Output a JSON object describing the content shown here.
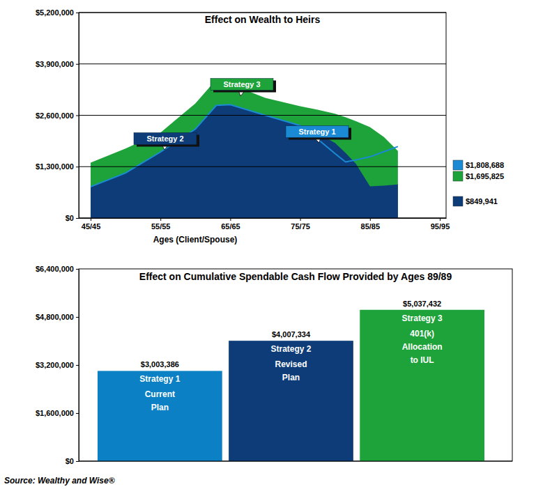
{
  "chart_data": [
    {
      "type": "area",
      "title": "Effect on Wealth to Heirs",
      "x_label": "Ages (Client/Spouse)",
      "x": [
        45,
        50,
        55,
        60,
        63,
        65,
        70,
        75,
        77.5,
        80,
        81.5,
        83,
        85,
        87,
        89
      ],
      "xlim": [
        43.3,
        95.9
      ],
      "xticks": [
        {
          "value": 45,
          "label": "45/45"
        },
        {
          "value": 55,
          "label": "55/55"
        },
        {
          "value": 65,
          "label": "65/65"
        },
        {
          "value": 75,
          "label": "75/75"
        },
        {
          "value": 85,
          "label": "85/85"
        },
        {
          "value": 95,
          "label": "95/95"
        }
      ],
      "ylim": [
        0,
        5200000
      ],
      "yticks": [
        {
          "value": 0,
          "label": "$0"
        },
        {
          "value": 1300000,
          "label": "$1,300,000"
        },
        {
          "value": 2600000,
          "label": "$2,600,000"
        },
        {
          "value": 3900000,
          "label": "$3,900,000"
        },
        {
          "value": 5200000,
          "label": "$5,200,000"
        }
      ],
      "grid": true,
      "series": [
        {
          "name": "Strategy 1",
          "type": "line",
          "color": "#1a8ad4",
          "values": [
            790000,
            1140000,
            1670000,
            2250000,
            2850000,
            2870000,
            2600000,
            2340000,
            2000000,
            1630000,
            1420000,
            1470000,
            1550000,
            1680000,
            1808688
          ],
          "final_value": 1808688,
          "final_label": "$1,808,688"
        },
        {
          "name": "Strategy 2",
          "type": "area",
          "color": "#0d3c78",
          "values": [
            790000,
            1140000,
            1670000,
            2250000,
            2850000,
            2870000,
            2600000,
            2340000,
            2150000,
            1900000,
            1650000,
            1370000,
            800000,
            820000,
            849941
          ],
          "final_value": 849941,
          "final_label": "$849,941"
        },
        {
          "name": "Strategy 3",
          "type": "area",
          "color": "#1ea33b",
          "values": [
            1400000,
            1760000,
            2160000,
            2900000,
            3510000,
            3390000,
            3040000,
            2830000,
            2740000,
            2640000,
            2550000,
            2450000,
            2300000,
            2050000,
            1695825
          ],
          "final_value": 1695825,
          "final_label": "$1,695,825"
        }
      ]
    },
    {
      "type": "bar",
      "title": "Effect on Cumulative Spendable Cash Flow Provided by Ages 89/89",
      "categories": [
        "Strategy 1",
        "Strategy 2",
        "Strategy 3"
      ],
      "descriptions": [
        [
          "Current",
          "Plan"
        ],
        [
          "Revised",
          "Plan"
        ],
        [
          "401(k)",
          "Allocation",
          "to IUL"
        ]
      ],
      "values": [
        3003386,
        4007334,
        5037432
      ],
      "value_labels": [
        "$3,003,386",
        "$4,007,334",
        "$5,037,432"
      ],
      "colors": [
        "#0b80c5",
        "#0d3c78",
        "#1ea33b"
      ],
      "data_labels": true,
      "tick_labels": "y",
      "ylim": [
        0,
        6400000
      ],
      "yticks": [
        {
          "value": 0,
          "label": "$0"
        },
        {
          "value": 1600000,
          "label": "$1,600,000"
        },
        {
          "value": 3200000,
          "label": "$3,200,000"
        },
        {
          "value": 4800000,
          "label": "$4,800,000"
        },
        {
          "value": 6400000,
          "label": "$6,400,000"
        }
      ]
    }
  ],
  "source": "Source: Wealthy and Wise®"
}
